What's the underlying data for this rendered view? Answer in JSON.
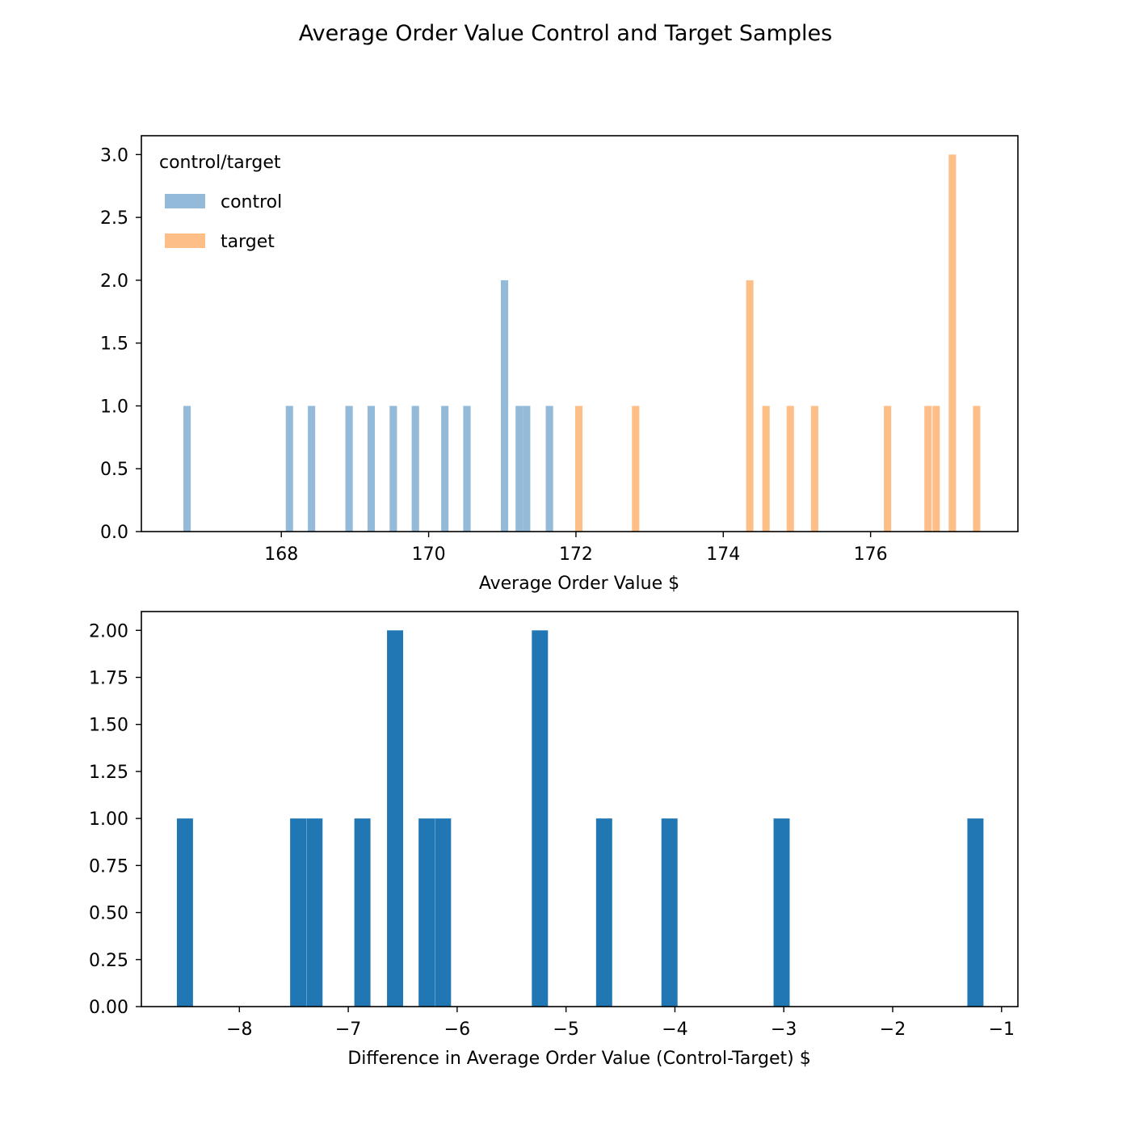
{
  "figure": {
    "title": "Average Order Value Control and Target Samples"
  },
  "chart_data": [
    {
      "type": "bar",
      "subtype": "histogram",
      "xlabel": "Average Order Value $",
      "ylabel": "",
      "xlim": [
        166.1,
        178.0
      ],
      "ylim": [
        0,
        3.15
      ],
      "xticks": [
        168,
        170,
        172,
        174,
        176
      ],
      "xtick_labels": [
        "168",
        "170",
        "172",
        "174",
        "176"
      ],
      "yticks": [
        0.0,
        0.5,
        1.0,
        1.5,
        2.0,
        2.5,
        3.0
      ],
      "ytick_labels": [
        "0.0",
        "0.5",
        "1.0",
        "1.5",
        "2.0",
        "2.5",
        "3.0"
      ],
      "grid": false,
      "legend": {
        "title": "control/target",
        "position": "upper-left"
      },
      "series": [
        {
          "name": "control",
          "color": "#94bad9",
          "bin_width": 0.1,
          "bars": [
            {
              "x": 166.72,
              "y": 1
            },
            {
              "x": 168.11,
              "y": 1
            },
            {
              "x": 168.41,
              "y": 1
            },
            {
              "x": 168.92,
              "y": 1
            },
            {
              "x": 169.22,
              "y": 1
            },
            {
              "x": 169.52,
              "y": 1
            },
            {
              "x": 169.82,
              "y": 1
            },
            {
              "x": 170.22,
              "y": 1
            },
            {
              "x": 170.52,
              "y": 1
            },
            {
              "x": 171.03,
              "y": 2
            },
            {
              "x": 171.23,
              "y": 1
            },
            {
              "x": 171.33,
              "y": 1
            },
            {
              "x": 171.64,
              "y": 1
            }
          ]
        },
        {
          "name": "target",
          "color": "#fdbf87",
          "bin_width": 0.1,
          "bars": [
            {
              "x": 172.04,
              "y": 1
            },
            {
              "x": 172.81,
              "y": 1
            },
            {
              "x": 174.36,
              "y": 2
            },
            {
              "x": 174.58,
              "y": 1
            },
            {
              "x": 174.91,
              "y": 1
            },
            {
              "x": 175.24,
              "y": 1
            },
            {
              "x": 176.23,
              "y": 1
            },
            {
              "x": 176.78,
              "y": 1
            },
            {
              "x": 176.89,
              "y": 1
            },
            {
              "x": 177.11,
              "y": 3
            },
            {
              "x": 177.44,
              "y": 1
            }
          ]
        }
      ]
    },
    {
      "type": "bar",
      "subtype": "histogram",
      "xlabel": "Difference in Average Order Value (Control-Target) $",
      "ylabel": "",
      "xlim": [
        -8.9,
        -0.85
      ],
      "ylim": [
        0,
        2.1
      ],
      "xticks": [
        -8,
        -7,
        -6,
        -5,
        -4,
        -3,
        -2,
        -1
      ],
      "xtick_labels": [
        "−8",
        "−7",
        "−6",
        "−5",
        "−4",
        "−3",
        "−2",
        "−1"
      ],
      "yticks": [
        0.0,
        0.25,
        0.5,
        0.75,
        1.0,
        1.25,
        1.5,
        1.75,
        2.0
      ],
      "ytick_labels": [
        "0.00",
        "0.25",
        "0.50",
        "0.75",
        "1.00",
        "1.25",
        "1.50",
        "1.75",
        "2.00"
      ],
      "grid": false,
      "series": [
        {
          "color": "#2077b4",
          "bin_width": 0.148,
          "bars": [
            {
              "x": -8.5,
              "y": 1
            },
            {
              "x": -7.46,
              "y": 1
            },
            {
              "x": -7.31,
              "y": 1
            },
            {
              "x": -6.87,
              "y": 1
            },
            {
              "x": -6.57,
              "y": 2
            },
            {
              "x": -6.28,
              "y": 1
            },
            {
              "x": -6.13,
              "y": 1
            },
            {
              "x": -5.24,
              "y": 2
            },
            {
              "x": -4.65,
              "y": 1
            },
            {
              "x": -4.05,
              "y": 1
            },
            {
              "x": -3.02,
              "y": 1
            },
            {
              "x": -1.24,
              "y": 1
            }
          ]
        }
      ]
    }
  ]
}
